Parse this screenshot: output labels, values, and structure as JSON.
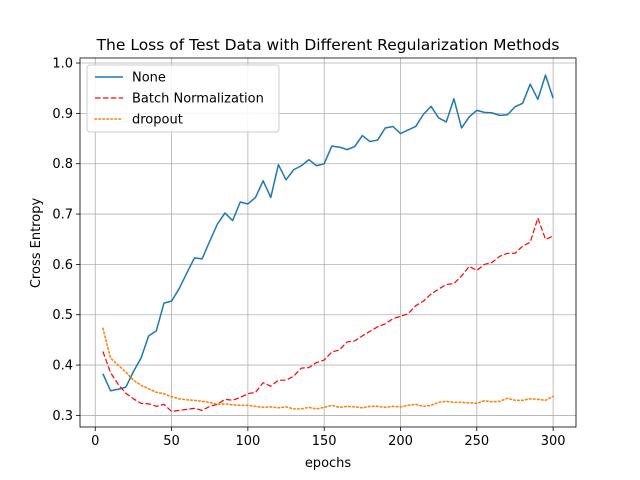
{
  "chart_data": {
    "type": "line",
    "title": "The Loss of Test Data with Different Regularization Methods",
    "xlabel": "epochs",
    "ylabel": "Cross Entropy",
    "xlim": [
      -10,
      315
    ],
    "ylim": [
      0.277,
      1.01
    ],
    "xticks": [
      0,
      50,
      100,
      150,
      200,
      250,
      300
    ],
    "yticks": [
      0.3,
      0.4,
      0.5,
      0.6,
      0.7,
      0.8,
      0.9,
      1.0
    ],
    "xtick_labels": [
      "0",
      "50",
      "100",
      "150",
      "200",
      "250",
      "300"
    ],
    "ytick_labels": [
      "0.3",
      "0.4",
      "0.5",
      "0.6",
      "0.7",
      "0.8",
      "0.9",
      "1.0"
    ],
    "grid": true,
    "legend_position": "top-left",
    "x": [
      5,
      10,
      15,
      20,
      25,
      30,
      35,
      40,
      45,
      50,
      55,
      60,
      65,
      70,
      75,
      80,
      85,
      90,
      95,
      100,
      105,
      110,
      115,
      120,
      125,
      130,
      135,
      140,
      145,
      150,
      155,
      160,
      165,
      170,
      175,
      180,
      185,
      190,
      195,
      200,
      205,
      210,
      215,
      220,
      225,
      230,
      235,
      240,
      245,
      250,
      255,
      260,
      265,
      270,
      275,
      280,
      285,
      290,
      295,
      300
    ],
    "series": [
      {
        "name": "None",
        "color": "#1f77b4",
        "style": "solid",
        "values": [
          0.383,
          0.349,
          0.352,
          0.356,
          0.387,
          0.414,
          0.458,
          0.468,
          0.523,
          0.527,
          0.552,
          0.583,
          0.613,
          0.611,
          0.646,
          0.68,
          0.702,
          0.687,
          0.724,
          0.72,
          0.733,
          0.766,
          0.733,
          0.798,
          0.768,
          0.788,
          0.796,
          0.808,
          0.796,
          0.8,
          0.835,
          0.833,
          0.828,
          0.834,
          0.856,
          0.844,
          0.847,
          0.871,
          0.874,
          0.86,
          0.867,
          0.874,
          0.898,
          0.914,
          0.891,
          0.883,
          0.929,
          0.871,
          0.893,
          0.906,
          0.902,
          0.901,
          0.896,
          0.897,
          0.913,
          0.92,
          0.958,
          0.928,
          0.976,
          0.93
        ]
      },
      {
        "name": "Batch Normalization",
        "color": "#ff0000",
        "style": "dashed",
        "values": [
          0.427,
          0.385,
          0.362,
          0.344,
          0.333,
          0.324,
          0.323,
          0.318,
          0.322,
          0.308,
          0.31,
          0.312,
          0.314,
          0.31,
          0.318,
          0.322,
          0.332,
          0.33,
          0.336,
          0.343,
          0.346,
          0.365,
          0.358,
          0.37,
          0.37,
          0.378,
          0.394,
          0.395,
          0.405,
          0.41,
          0.426,
          0.43,
          0.446,
          0.448,
          0.458,
          0.467,
          0.476,
          0.482,
          0.492,
          0.497,
          0.502,
          0.518,
          0.527,
          0.541,
          0.551,
          0.56,
          0.562,
          0.577,
          0.596,
          0.588,
          0.6,
          0.604,
          0.616,
          0.622,
          0.622,
          0.636,
          0.644,
          0.692,
          0.65,
          0.656
        ]
      },
      {
        "name": "dropout",
        "color": "#ff7f0e",
        "style": "dotted",
        "values": [
          0.473,
          0.414,
          0.4,
          0.386,
          0.37,
          0.36,
          0.353,
          0.346,
          0.343,
          0.337,
          0.333,
          0.331,
          0.33,
          0.328,
          0.326,
          0.322,
          0.323,
          0.321,
          0.32,
          0.32,
          0.318,
          0.316,
          0.317,
          0.315,
          0.317,
          0.313,
          0.313,
          0.316,
          0.313,
          0.316,
          0.32,
          0.316,
          0.318,
          0.317,
          0.315,
          0.318,
          0.318,
          0.316,
          0.318,
          0.317,
          0.32,
          0.322,
          0.318,
          0.32,
          0.326,
          0.328,
          0.326,
          0.326,
          0.325,
          0.324,
          0.329,
          0.327,
          0.328,
          0.334,
          0.33,
          0.33,
          0.333,
          0.332,
          0.33,
          0.338
        ]
      }
    ]
  }
}
